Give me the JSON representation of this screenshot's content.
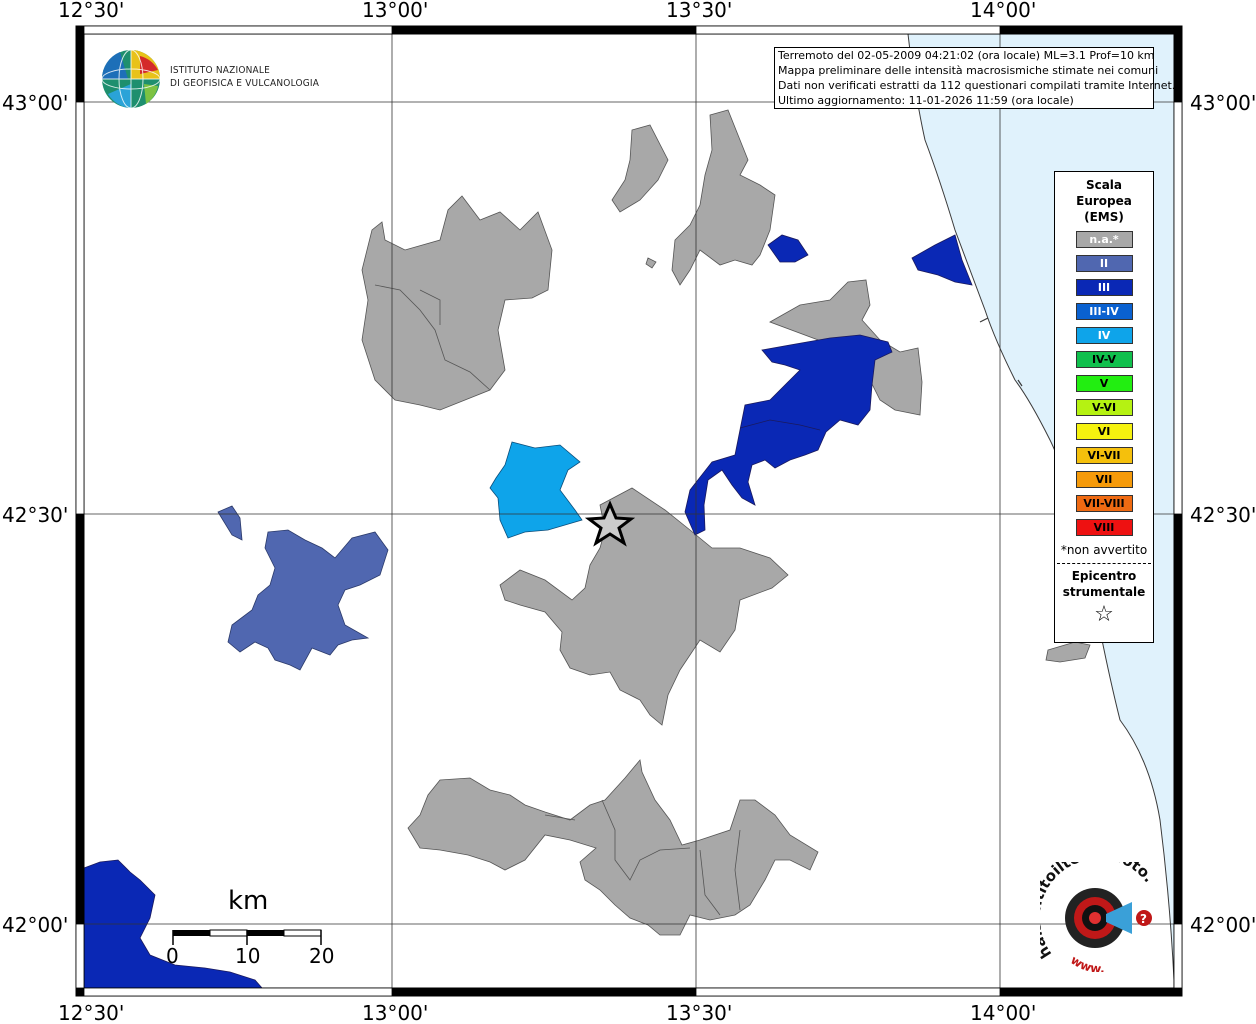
{
  "map": {
    "lon_labels": [
      "12°30'",
      "13°00'",
      "13°30'",
      "14°00'"
    ],
    "lat_labels": [
      "43°00'",
      "42°30'",
      "42°00'"
    ],
    "sea_color": "#e0f2fc",
    "land_color": "#ffffff"
  },
  "organization": {
    "logo_line1": "ISTITUTO NAZIONALE",
    "logo_line2": "DI GEOFISICA E VULCANOLOGIA"
  },
  "info": {
    "line1": "Terremoto del 02-05-2009 04:21:02 (ora locale) ML=3.1 Prof=10 km",
    "line2": "Mappa preliminare delle intensità macrosismiche stimate nei comuni",
    "line3": "Dati non verificati estratti da 112 questionari compilati tramite Internet.",
    "line4": "Ultimo aggiornamento: 11-01-2026 11:59 (ora locale)"
  },
  "legend": {
    "title1": "Scala",
    "title2": "Europea",
    "title3": "(EMS)",
    "items": [
      {
        "label": "n.a.*",
        "color": "#a8a8a8"
      },
      {
        "label": "II",
        "color": "#5067b0"
      },
      {
        "label": "III",
        "color": "#0a28b5"
      },
      {
        "label": "III-IV",
        "color": "#0a61d0"
      },
      {
        "label": "IV",
        "color": "#0ea4ea"
      },
      {
        "label": "IV-V",
        "color": "#10c04d"
      },
      {
        "label": "V",
        "color": "#22ee11"
      },
      {
        "label": "V-VI",
        "color": "#b5f212"
      },
      {
        "label": "VI",
        "color": "#f5f20f"
      },
      {
        "label": "VI-VII",
        "color": "#f5c00c"
      },
      {
        "label": "VII",
        "color": "#f59a0a"
      },
      {
        "label": "VII-VIII",
        "color": "#ef6a12"
      },
      {
        "label": "VIII",
        "color": "#ee1111"
      }
    ],
    "note": "*non avvertito",
    "epi1": "Epicentro",
    "epi2": "strumentale",
    "star": "☆"
  },
  "scalebar": {
    "unit": "km",
    "labels": [
      "0",
      "10",
      "20"
    ]
  },
  "site_logo": {
    "text": "haisentitoilterremoto.it",
    "url": "www."
  }
}
